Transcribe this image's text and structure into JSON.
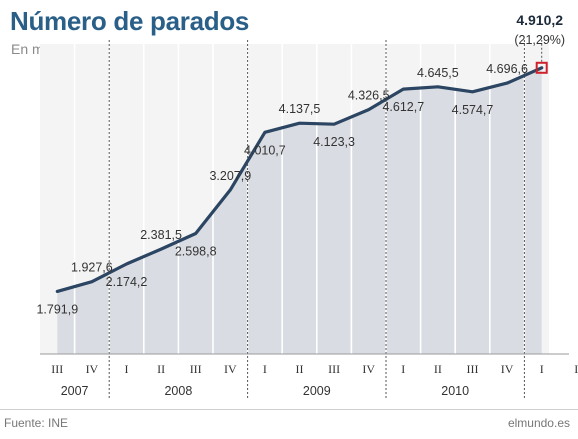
{
  "title": "Número de parados",
  "subtitle": "En miles",
  "source": "Fuente: INE",
  "brand": "elmundo.es",
  "colors": {
    "title": "#2a5f88",
    "line": "#2b4562",
    "area": "#d9dde3",
    "highlight": "#d0202a"
  },
  "chart_data": {
    "type": "area",
    "title": "Número de parados",
    "subtitle": "En miles",
    "xlabel": "",
    "ylabel": "",
    "ylim": [
      1400,
      5200
    ],
    "grid": false,
    "years": [
      {
        "label": "2007",
        "quarters": [
          "III",
          "IV"
        ]
      },
      {
        "label": "2008",
        "quarters": [
          "I",
          "II",
          "III",
          "IV"
        ]
      },
      {
        "label": "2009",
        "quarters": [
          "I",
          "II",
          "III",
          "IV"
        ]
      },
      {
        "label": "2010",
        "quarters": [
          "I",
          "II",
          "III",
          "IV"
        ]
      },
      {
        "label": "",
        "quarters": [
          "I",
          "I"
        ]
      }
    ],
    "points": [
      {
        "x": "2007-08-01",
        "y": 1791.9,
        "label": "1.791,9"
      },
      {
        "x": "2007-11-01",
        "y": 1927.6,
        "label": "1.927,6"
      },
      {
        "x": "2008-02-01",
        "y": 2174.2,
        "label": "2.174,2"
      },
      {
        "x": "2008-05-01",
        "y": 2381.5,
        "label": "2.381,5"
      },
      {
        "x": "2008-08-01",
        "y": 2598.8,
        "label": "2.598,8"
      },
      {
        "x": "2008-11-01",
        "y": 3207.9,
        "label": "3.207,9"
      },
      {
        "x": "2009-02-01",
        "y": 4010.7,
        "label": "4.010,7"
      },
      {
        "x": "2009-05-01",
        "y": 4137.5,
        "label": "4.137,5"
      },
      {
        "x": "2009-08-01",
        "y": 4123.3,
        "label": "4.123,3"
      },
      {
        "x": "2009-11-01",
        "y": 4326.5,
        "label": "4.326,5"
      },
      {
        "x": "2010-02-01",
        "y": 4612.7,
        "label": "4.612,7"
      },
      {
        "x": "2010-05-01",
        "y": 4645.5,
        "label": "4.645,5"
      },
      {
        "x": "2010-08-01",
        "y": 4574.7,
        "label": "4.574,7"
      },
      {
        "x": "2010-11-01",
        "y": 4696.6,
        "label": "4.696,6"
      },
      {
        "x": "2011-02-01",
        "y": 4910.2,
        "label": "4.910,2",
        "highlight": true,
        "note": "(21,29%)"
      }
    ]
  }
}
